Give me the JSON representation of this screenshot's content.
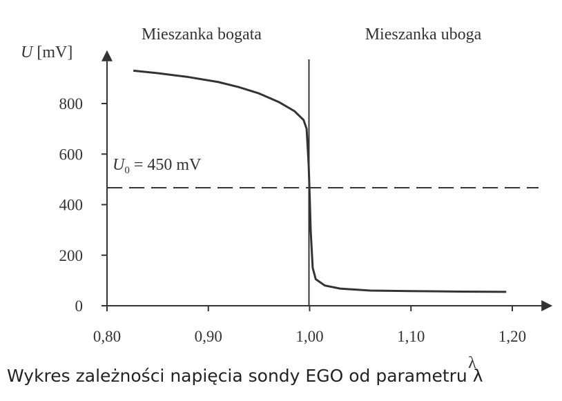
{
  "chart_data": {
    "type": "line",
    "region_labels": [
      "Mieszanka bogata",
      "Mieszanka uboga"
    ],
    "ylabel_symbol": "U",
    "ylabel_unit": "[mV]",
    "xlabel": "λ",
    "reference_label_symbol": "U",
    "reference_label_subscript": "0",
    "reference_label_value": " = 450 mV",
    "reference_value": 450,
    "divider_x": 1.0,
    "xlim": [
      0.8,
      1.21
    ],
    "ylim": [
      0,
      1000
    ],
    "x_ticks": [
      0.8,
      0.9,
      1.0,
      1.1,
      1.2
    ],
    "x_tick_labels": [
      "0,80",
      "0,90",
      "1,00",
      "1,10",
      "1,20"
    ],
    "y_ticks": [
      0,
      200,
      400,
      600,
      800
    ],
    "y_tick_labels": [
      "0",
      "200",
      "400",
      "600",
      "800"
    ],
    "series": [
      {
        "x": [
          0.826,
          0.85,
          0.88,
          0.91,
          0.93,
          0.95,
          0.97,
          0.985,
          0.994,
          0.997,
          0.999,
          1.0,
          1.001,
          1.003,
          1.006,
          1.015,
          1.03,
          1.06,
          1.1,
          1.15,
          1.194
        ],
        "y": [
          930,
          920,
          905,
          885,
          865,
          840,
          805,
          770,
          735,
          700,
          560,
          440,
          300,
          150,
          105,
          80,
          68,
          60,
          58,
          56,
          55
        ]
      }
    ],
    "grid": false
  },
  "caption": "Wykres zależności napięcia sondy EGO od parametru λ"
}
